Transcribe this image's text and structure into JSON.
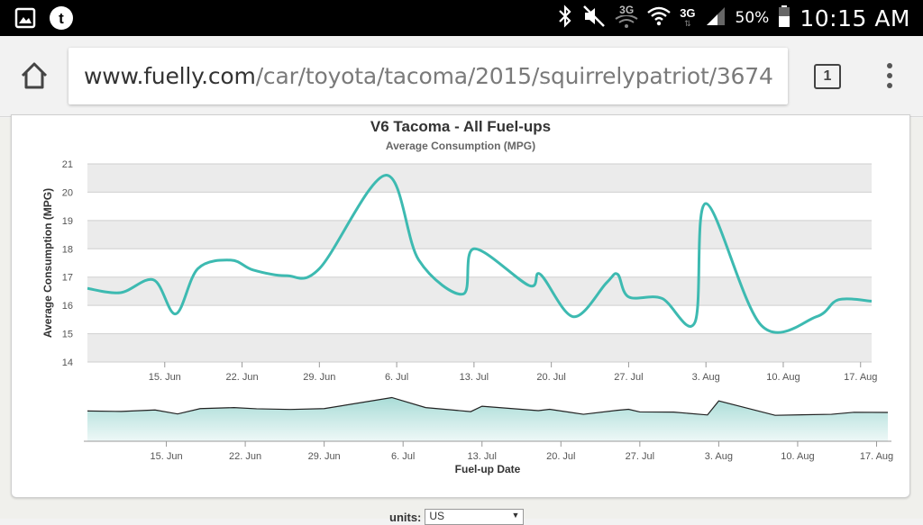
{
  "status_bar": {
    "battery": "50%",
    "time": "10:15 AM",
    "network_3g_a": "3G",
    "network_3g_b": "3G",
    "left_icons": [
      "gallery-icon",
      "tumblr-icon"
    ],
    "right_icons": [
      "bluetooth-icon",
      "mute-icon",
      "wifi-icon",
      "signal-icon",
      "battery-icon"
    ]
  },
  "browser": {
    "url_domain": "www.fuelly.com",
    "url_path": "/car/toyota/tacoma/2015/squirrelypatriot/3674",
    "tab_count": "1"
  },
  "page": {
    "units_label": "units:",
    "units_value": "US"
  },
  "colors": {
    "line": "#3dbab1",
    "band": "#ebebeb",
    "navigator_fill": "#bfe3e0"
  },
  "chart_data": {
    "type": "line",
    "title": "V6 Tacoma - All Fuel-ups",
    "subtitle": "Average Consumption (MPG)",
    "ylabel": "Average Consumption (MPG)",
    "xlabel": "Fuel-up Date",
    "ylim": [
      14,
      21
    ],
    "yticks": [
      14,
      15,
      16,
      17,
      18,
      19,
      20,
      21
    ],
    "xlim": [
      "2015-06-08",
      "2015-08-18"
    ],
    "xticks": [
      {
        "date": "2015-06-15",
        "label": "15. Jun"
      },
      {
        "date": "2015-06-22",
        "label": "22. Jun"
      },
      {
        "date": "2015-06-29",
        "label": "29. Jun"
      },
      {
        "date": "2015-07-06",
        "label": "6. Jul"
      },
      {
        "date": "2015-07-13",
        "label": "13. Jul"
      },
      {
        "date": "2015-07-20",
        "label": "20. Jul"
      },
      {
        "date": "2015-07-27",
        "label": "27. Jul"
      },
      {
        "date": "2015-08-03",
        "label": "3. Aug"
      },
      {
        "date": "2015-08-10",
        "label": "10. Aug"
      },
      {
        "date": "2015-08-17",
        "label": "17. Aug"
      }
    ],
    "series": [
      {
        "points": [
          [
            "2015-06-08",
            16.6
          ],
          [
            "2015-06-11",
            16.45
          ],
          [
            "2015-06-14",
            16.9
          ],
          [
            "2015-06-16",
            15.7
          ],
          [
            "2015-06-18",
            17.3
          ],
          [
            "2015-06-21",
            17.6
          ],
          [
            "2015-06-23",
            17.25
          ],
          [
            "2015-06-26",
            17.05
          ],
          [
            "2015-06-29",
            17.3
          ],
          [
            "2015-07-05",
            20.6
          ],
          [
            "2015-07-08",
            17.6
          ],
          [
            "2015-07-12",
            16.4
          ],
          [
            "2015-07-13",
            18.0
          ],
          [
            "2015-07-18",
            16.7
          ],
          [
            "2015-07-19",
            17.1
          ],
          [
            "2015-07-22",
            15.6
          ],
          [
            "2015-07-25",
            16.8
          ],
          [
            "2015-07-26",
            17.1
          ],
          [
            "2015-07-27",
            16.3
          ],
          [
            "2015-07-30",
            16.25
          ],
          [
            "2015-08-02",
            15.4
          ],
          [
            "2015-08-03",
            19.6
          ],
          [
            "2015-08-08",
            15.3
          ],
          [
            "2015-08-13",
            15.6
          ],
          [
            "2015-08-15",
            16.2
          ],
          [
            "2015-08-18",
            16.15
          ]
        ]
      }
    ],
    "grid": true,
    "legend": "none"
  }
}
